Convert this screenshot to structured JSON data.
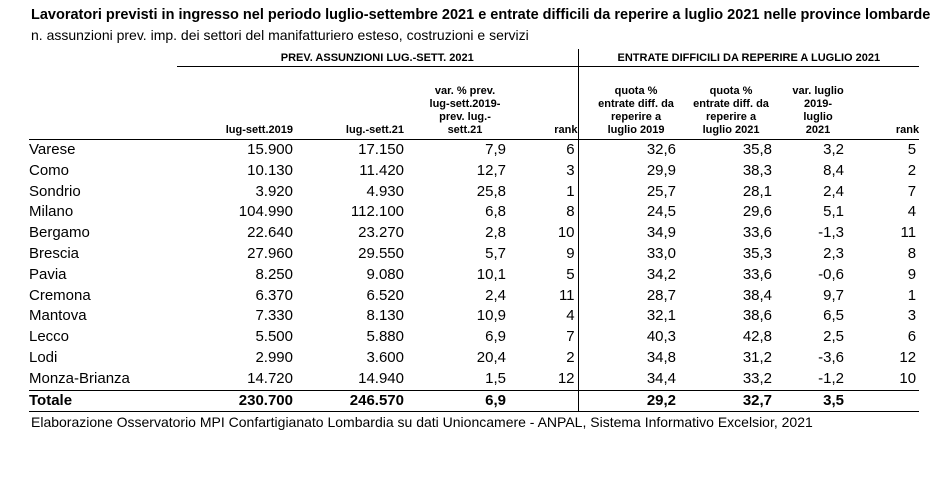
{
  "title": "Lavoratori previsti in ingresso nel periodo luglio-settembre 2021  e entrate difficili da reperire a luglio 2021 nelle province lombarde",
  "subtitle": "n. assunzioni prev. imp. dei settori del manifatturiero esteso, costruzioni e servizi",
  "group_headers": {
    "left": "PREV. ASSUNZIONI LUG.-SETT. 2021",
    "right": "ENTRATE DIFFICILI DA REPERIRE A LUGLIO 2021"
  },
  "column_headers": [
    "lug-sett.2019",
    "lug.-sett.21",
    "var. % prev. lug-sett.2019- prev. lug.- sett.21",
    "rank",
    "quota % entrate diff. da reperire a luglio 2019",
    "quota % entrate diff. da reperire a luglio 2021",
    "var. luglio 2019- luglio 2021",
    "rank"
  ],
  "rows": [
    {
      "name": "Varese",
      "c1": "15.900",
      "c2": "17.150",
      "c3": "7,9",
      "c4": "6",
      "c5": "32,6",
      "c6": "35,8",
      "c7": "3,2",
      "c8": "5"
    },
    {
      "name": "Como",
      "c1": "10.130",
      "c2": "11.420",
      "c3": "12,7",
      "c4": "3",
      "c5": "29,9",
      "c6": "38,3",
      "c7": "8,4",
      "c8": "2"
    },
    {
      "name": "Sondrio",
      "c1": "3.920",
      "c2": "4.930",
      "c3": "25,8",
      "c4": "1",
      "c5": "25,7",
      "c6": "28,1",
      "c7": "2,4",
      "c8": "7"
    },
    {
      "name": "Milano",
      "c1": "104.990",
      "c2": "112.100",
      "c3": "6,8",
      "c4": "8",
      "c5": "24,5",
      "c6": "29,6",
      "c7": "5,1",
      "c8": "4"
    },
    {
      "name": "Bergamo",
      "c1": "22.640",
      "c2": "23.270",
      "c3": "2,8",
      "c4": "10",
      "c5": "34,9",
      "c6": "33,6",
      "c7": "-1,3",
      "c8": "11"
    },
    {
      "name": "Brescia",
      "c1": "27.960",
      "c2": "29.550",
      "c3": "5,7",
      "c4": "9",
      "c5": "33,0",
      "c6": "35,3",
      "c7": "2,3",
      "c8": "8"
    },
    {
      "name": "Pavia",
      "c1": "8.250",
      "c2": "9.080",
      "c3": "10,1",
      "c4": "5",
      "c5": "34,2",
      "c6": "33,6",
      "c7": "-0,6",
      "c8": "9"
    },
    {
      "name": "Cremona",
      "c1": "6.370",
      "c2": "6.520",
      "c3": "2,4",
      "c4": "11",
      "c5": "28,7",
      "c6": "38,4",
      "c7": "9,7",
      "c8": "1"
    },
    {
      "name": "Mantova",
      "c1": "7.330",
      "c2": "8.130",
      "c3": "10,9",
      "c4": "4",
      "c5": "32,1",
      "c6": "38,6",
      "c7": "6,5",
      "c8": "3"
    },
    {
      "name": "Lecco",
      "c1": "5.500",
      "c2": "5.880",
      "c3": "6,9",
      "c4": "7",
      "c5": "40,3",
      "c6": "42,8",
      "c7": "2,5",
      "c8": "6"
    },
    {
      "name": "Lodi",
      "c1": "2.990",
      "c2": "3.600",
      "c3": "20,4",
      "c4": "2",
      "c5": "34,8",
      "c6": "31,2",
      "c7": "-3,6",
      "c8": "12"
    },
    {
      "name": "Monza-Brianza",
      "c1": "14.720",
      "c2": "14.940",
      "c3": "1,5",
      "c4": "12",
      "c5": "34,4",
      "c6": "33,2",
      "c7": "-1,2",
      "c8": "10"
    }
  ],
  "total": {
    "name": "Totale",
    "c1": "230.700",
    "c2": "246.570",
    "c3": "6,9",
    "c4": "",
    "c5": "29,2",
    "c6": "32,7",
    "c7": "3,5",
    "c8": ""
  },
  "source": "Elaborazione Osservatorio MPI Confartigianato Lombardia su dati Unioncamere - ANPAL, Sistema Informativo Excelsior, 2021"
}
